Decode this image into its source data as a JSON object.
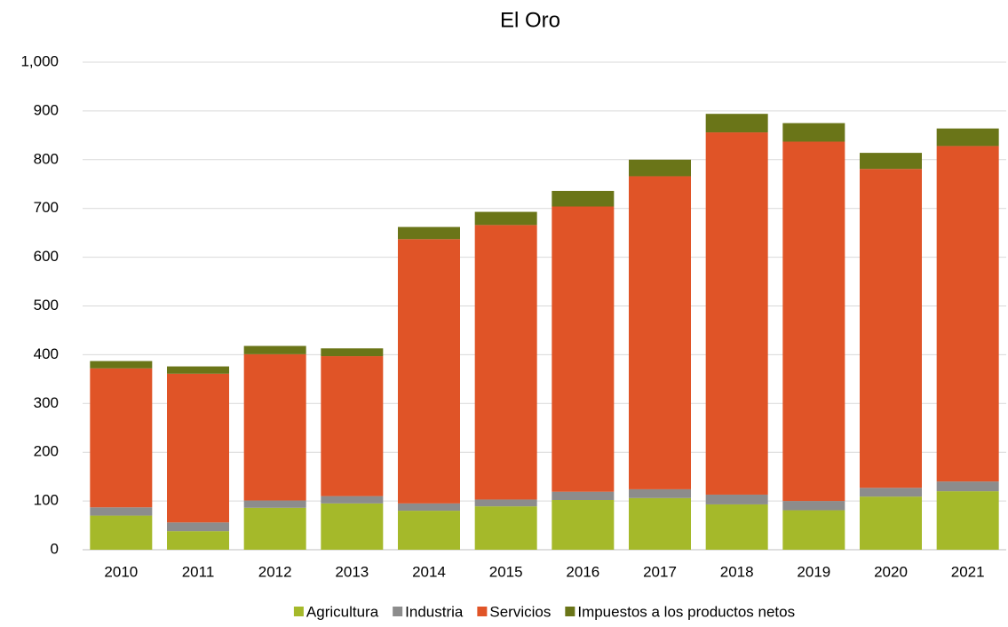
{
  "chart_data": {
    "type": "stacked_bar",
    "title": "El Oro",
    "categories": [
      "2010",
      "2011",
      "2012",
      "2013",
      "2014",
      "2015",
      "2016",
      "2017",
      "2018",
      "2019",
      "2020",
      "2021"
    ],
    "series": [
      {
        "name": "Agricultura",
        "color": "#a5b92a",
        "values": [
          70,
          38,
          86,
          95,
          80,
          89,
          102,
          106,
          93,
          81,
          109,
          120
        ]
      },
      {
        "name": "Industria",
        "color": "#8c8c8c",
        "values": [
          17,
          18,
          15,
          15,
          15,
          14,
          17,
          18,
          20,
          19,
          18,
          20
        ]
      },
      {
        "name": "Servicios",
        "color": "#e05427",
        "values": [
          285,
          305,
          300,
          287,
          542,
          563,
          585,
          642,
          743,
          737,
          654,
          688
        ]
      },
      {
        "name": "Impuestos a los productos netos",
        "color": "#6a7518",
        "values": [
          15,
          15,
          17,
          16,
          25,
          27,
          32,
          34,
          38,
          38,
          33,
          36
        ]
      }
    ],
    "ylim": [
      0,
      1000
    ],
    "yticks": [
      0,
      100,
      200,
      300,
      400,
      500,
      600,
      700,
      800,
      900,
      {
        "value": 1000,
        "label": "1,000"
      }
    ],
    "grid": true,
    "legend": "bottom"
  }
}
